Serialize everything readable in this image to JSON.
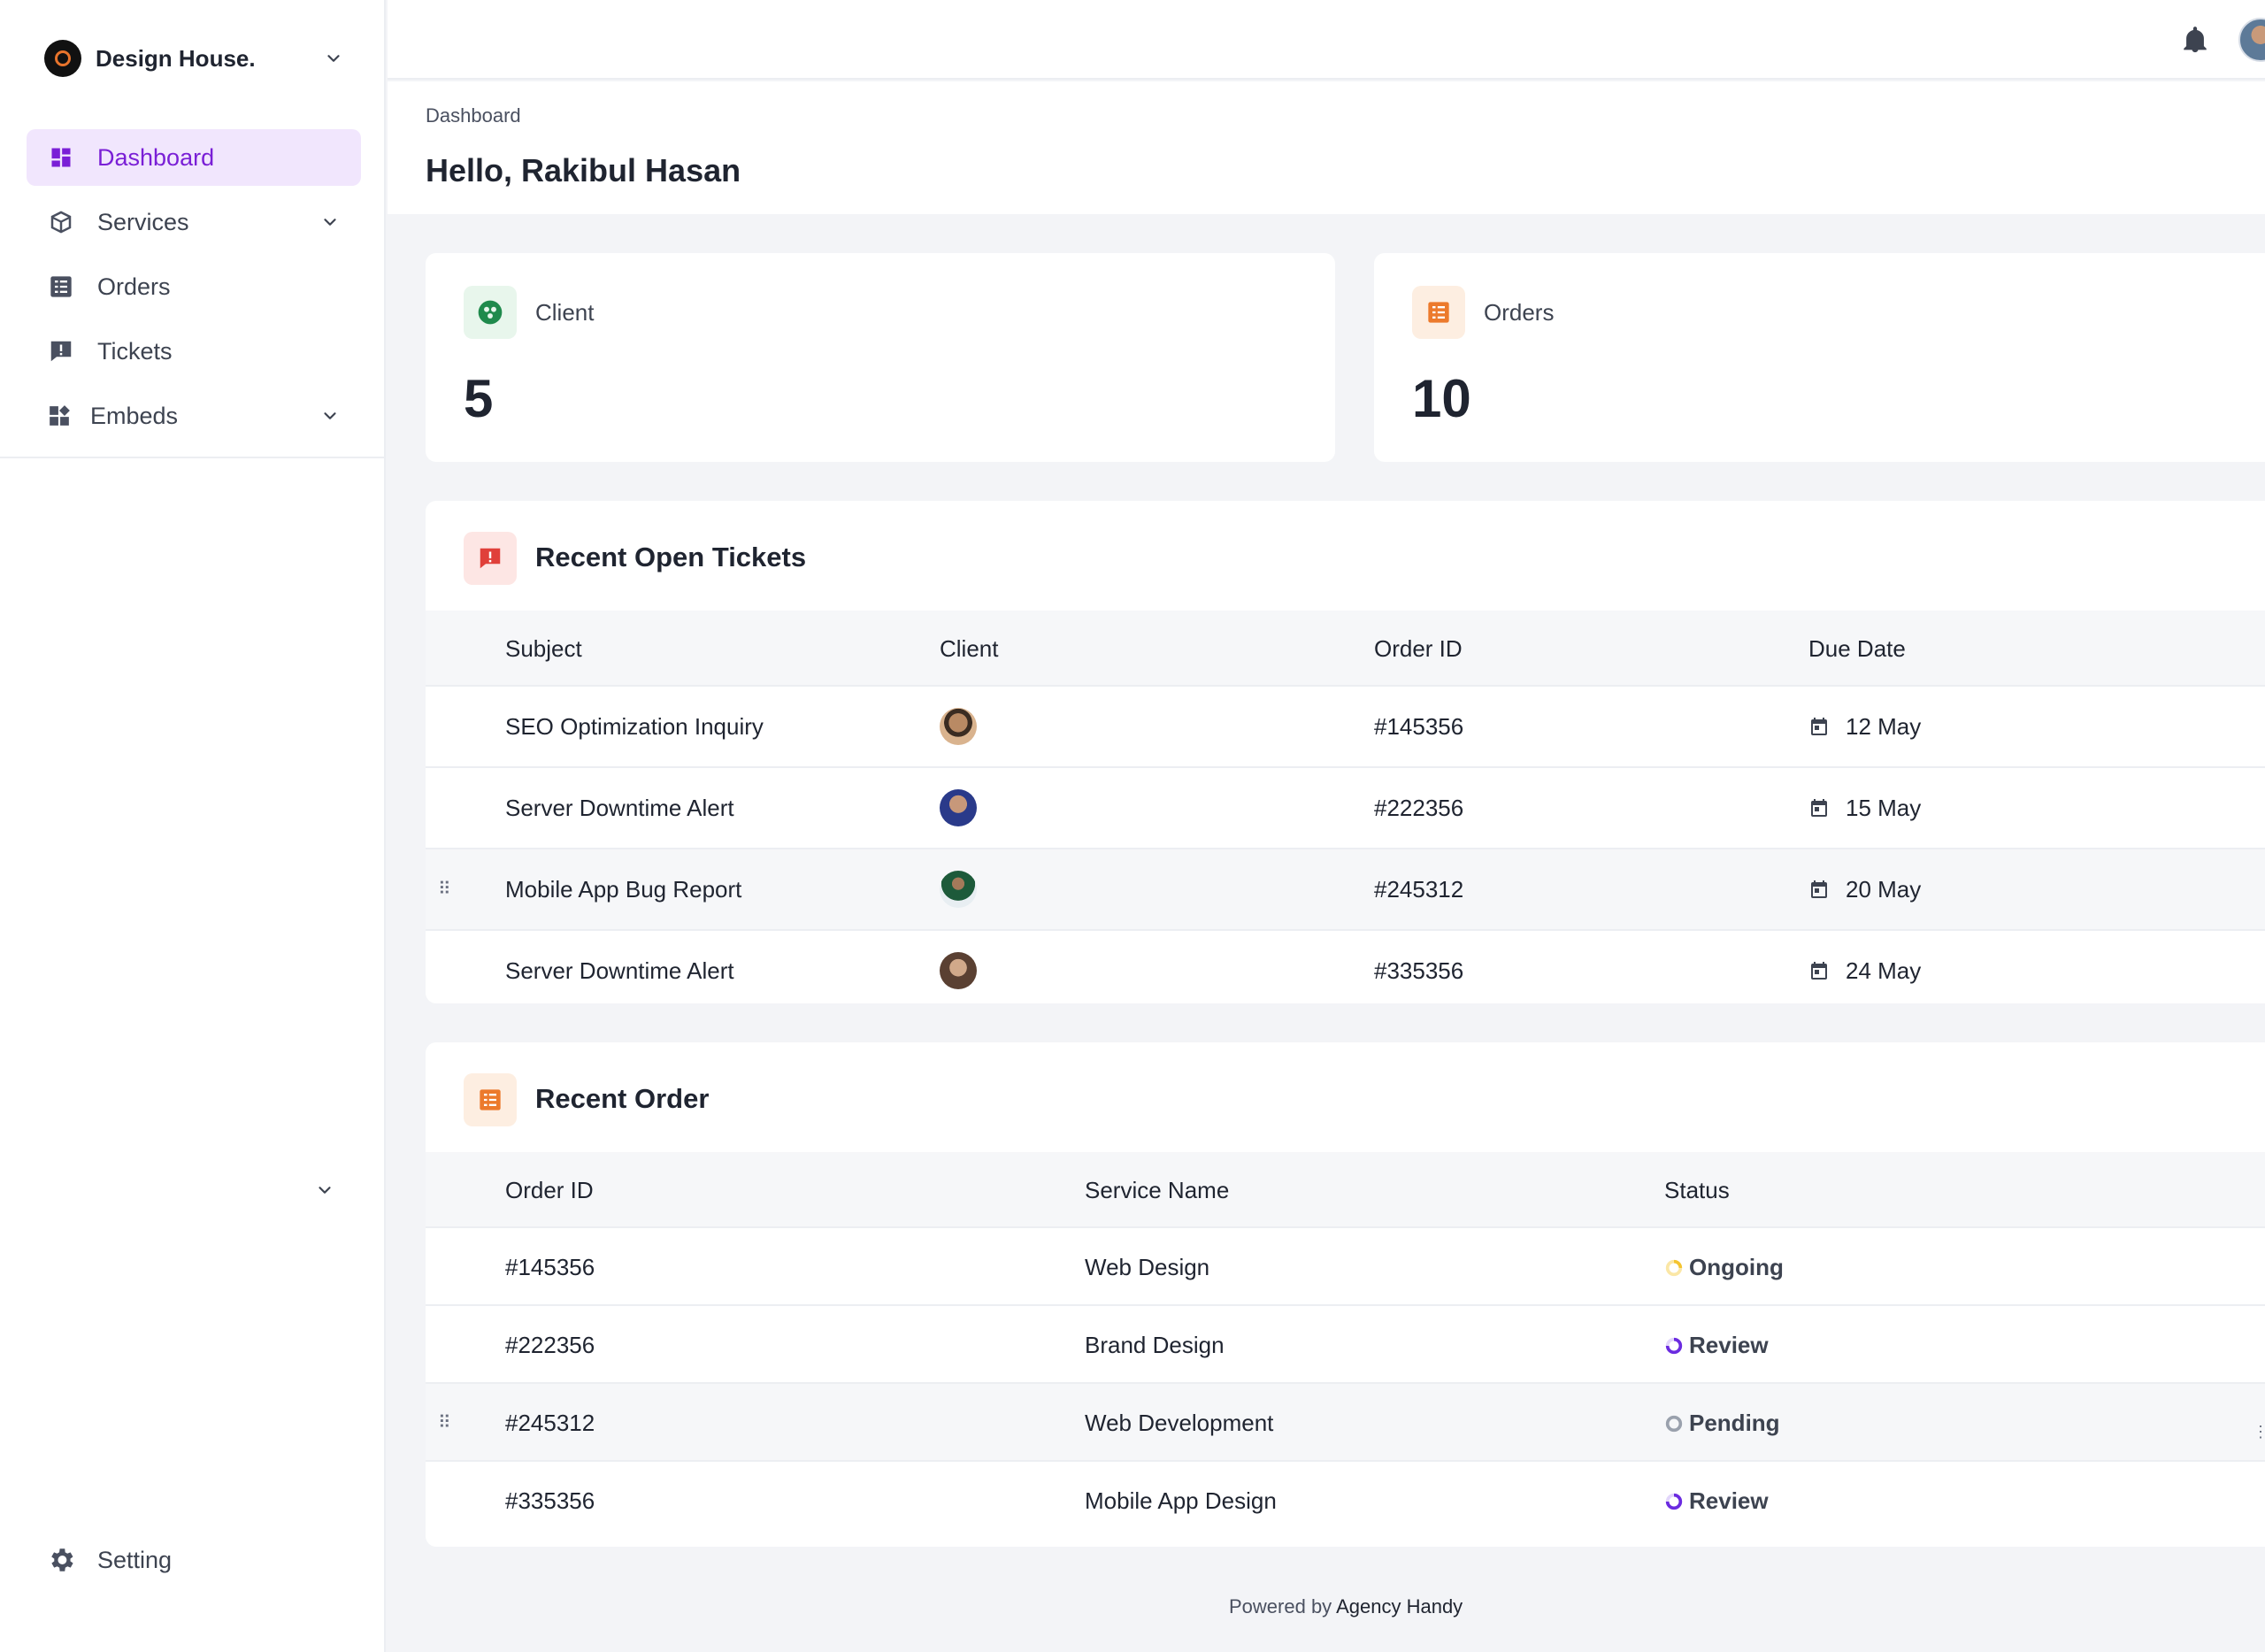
{
  "brand": {
    "name": "Design House."
  },
  "sidebar": {
    "items": [
      {
        "label": "Dashboard",
        "icon": "dashboard-icon",
        "active": true
      },
      {
        "label": "Services",
        "icon": "box-icon",
        "has_chevron": true
      },
      {
        "label": "Orders",
        "icon": "list-icon"
      },
      {
        "label": "Tickets",
        "icon": "ticket-icon"
      },
      {
        "label": "Embeds",
        "icon": "embeds-icon",
        "has_chevron": true
      }
    ],
    "setting_label": "Setting"
  },
  "header": {
    "breadcrumb": "Dashboard",
    "greeting": "Hello, Rakibul Hasan"
  },
  "stats": [
    {
      "label": "Client",
      "value": "5",
      "icon": "client-icon"
    },
    {
      "label": "Orders",
      "value": "10",
      "icon": "orders-icon"
    }
  ],
  "tickets": {
    "title": "Recent Open Tickets",
    "columns": [
      "Subject",
      "Client",
      "Order ID",
      "Due Date"
    ],
    "rows": [
      {
        "subject": "SEO Optimization Inquiry",
        "order_id": "#145356",
        "due": "12 May"
      },
      {
        "subject": "Server Downtime Alert",
        "order_id": "#222356",
        "due": "15 May"
      },
      {
        "subject": "Mobile App Bug Report",
        "order_id": "#245312",
        "due": "20 May"
      },
      {
        "subject": "Server Downtime Alert",
        "order_id": "#335356",
        "due": "24 May"
      }
    ]
  },
  "orders": {
    "title": "Recent Order",
    "columns": [
      "Order ID",
      "Service Name",
      "Status"
    ],
    "rows": [
      {
        "order_id": "#145356",
        "service": "Web Design",
        "status": "Ongoing"
      },
      {
        "order_id": "#222356",
        "service": "Brand Design",
        "status": "Review"
      },
      {
        "order_id": "#245312",
        "service": "Web Development",
        "status": "Pending"
      },
      {
        "order_id": "#335356",
        "service": "Mobile App Design",
        "status": "Review"
      }
    ]
  },
  "footer": {
    "prefix": "Powered by",
    "brand": "Agency Handy"
  },
  "colors": {
    "accent": "#7a1fd6",
    "active_bg": "#f1e6fd",
    "ongoing": "#f4c430",
    "review": "#6b2be0",
    "pending": "#9aa1ad"
  }
}
